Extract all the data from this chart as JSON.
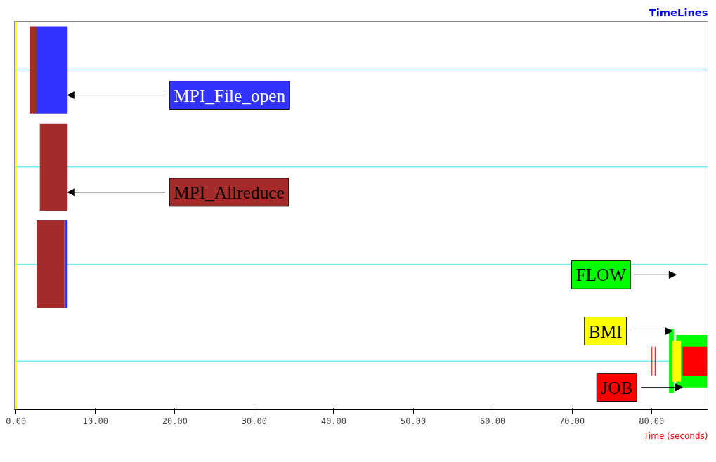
{
  "chart_data": {
    "type": "bar",
    "orientation": "horizontal",
    "title": "TimeLines",
    "xlabel": "Time (seconds)",
    "categories": [
      null,
      null,
      null,
      null
    ],
    "xlim": [
      -0.2,
      87.1
    ],
    "xticks": [
      {
        "value": 0,
        "label": "0.00"
      },
      {
        "value": 10,
        "label": "10.00"
      },
      {
        "value": 20,
        "label": "20.00"
      },
      {
        "value": 30,
        "label": "30.00"
      },
      {
        "value": 40,
        "label": "40.00"
      },
      {
        "value": 50,
        "label": "50.00"
      },
      {
        "value": 60,
        "label": "60.00"
      },
      {
        "value": 70,
        "label": "70.00"
      },
      {
        "value": 80,
        "label": "80.00"
      }
    ],
    "tick_labels": "x",
    "grid": "y",
    "ref_lines": [
      {
        "axis": "x",
        "value": 0,
        "color": "#ffff00"
      }
    ],
    "series": [
      {
        "name": "MPI_Allreduce",
        "color": "#a52a2a",
        "values": [
          0.8,
          3.5,
          3.5,
          null
        ],
        "base": [
          1.7,
          3.0,
          2.6,
          null
        ]
      },
      {
        "name": "MPI_File_open",
        "color": "#3333ff",
        "values": [
          4.0,
          null,
          0.4,
          null
        ],
        "base": [
          2.5,
          null,
          6.1,
          null
        ]
      },
      {
        "color": "#00ff00",
        "values": [
          null,
          null,
          null,
          0.6
        ],
        "base": [
          null,
          null,
          null,
          82.2
        ]
      },
      {
        "name": "FLOW",
        "color": "#00ff00",
        "values": [
          null,
          null,
          null,
          3.9
        ],
        "base": [
          null,
          null,
          null,
          83.1
        ]
      },
      {
        "name": "BMI",
        "color": "#ffff00",
        "values": [
          null,
          null,
          null,
          1.1
        ],
        "base": [
          null,
          null,
          null,
          82.6
        ]
      },
      {
        "color": "#ff0000",
        "values": [
          null,
          null,
          null,
          0.1
        ],
        "base": [
          null,
          null,
          null,
          80.0
        ]
      },
      {
        "color": "#ff0000",
        "values": [
          null,
          null,
          null,
          0.1
        ],
        "base": [
          null,
          null,
          null,
          80.4
        ]
      },
      {
        "name": "JOB",
        "color": "#ff0000",
        "values": [
          null,
          null,
          null,
          3.1
        ],
        "base": [
          null,
          null,
          null,
          83.9
        ]
      }
    ]
  }
}
